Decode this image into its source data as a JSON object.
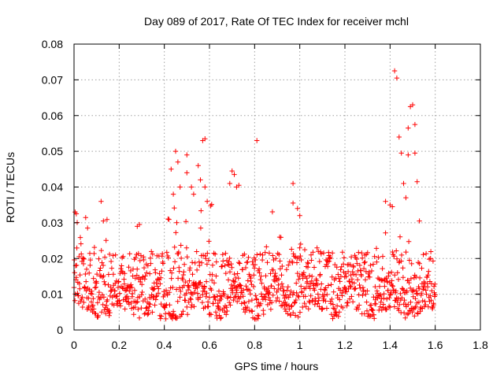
{
  "chart_data": {
    "type": "scatter",
    "title": "Day 089 of 2017, Rate Of TEC Index for receiver mchl",
    "xlabel": "GPS time / hours",
    "ylabel": "ROTI / TECUs",
    "xlim": [
      0,
      1.8
    ],
    "ylim": [
      0,
      0.08
    ],
    "xticks": [
      "0",
      "0.2",
      "0.4",
      "0.6",
      "0.8",
      "1",
      "1.2",
      "1.4",
      "1.6",
      "1.8"
    ],
    "yticks": [
      "0",
      "0.01",
      "0.02",
      "0.03",
      "0.04",
      "0.05",
      "0.06",
      "0.07",
      "0.08"
    ],
    "grid": true,
    "legend": "none",
    "marker": "plus",
    "color": "#ff0000",
    "outliers": [
      [
        0.005,
        0.033
      ],
      [
        0.01,
        0.0325
      ],
      [
        0.12,
        0.036
      ],
      [
        0.13,
        0.0305
      ],
      [
        0.28,
        0.029
      ],
      [
        0.29,
        0.0295
      ],
      [
        0.43,
        0.045
      ],
      [
        0.44,
        0.038
      ],
      [
        0.45,
        0.05
      ],
      [
        0.46,
        0.047
      ],
      [
        0.47,
        0.04
      ],
      [
        0.5,
        0.049
      ],
      [
        0.5,
        0.044
      ],
      [
        0.52,
        0.04
      ],
      [
        0.53,
        0.038
      ],
      [
        0.55,
        0.046
      ],
      [
        0.56,
        0.042
      ],
      [
        0.57,
        0.053
      ],
      [
        0.58,
        0.0535
      ],
      [
        0.58,
        0.04
      ],
      [
        0.59,
        0.036
      ],
      [
        0.69,
        0.041
      ],
      [
        0.7,
        0.0445
      ],
      [
        0.71,
        0.0435
      ],
      [
        0.72,
        0.04
      ],
      [
        0.73,
        0.0405
      ],
      [
        0.81,
        0.053
      ],
      [
        0.97,
        0.041
      ],
      [
        0.97,
        0.0355
      ],
      [
        0.99,
        0.034
      ],
      [
        1.0,
        0.032
      ],
      [
        1.38,
        0.036
      ],
      [
        1.4,
        0.035
      ],
      [
        1.41,
        0.0345
      ],
      [
        1.42,
        0.0725
      ],
      [
        1.43,
        0.0705
      ],
      [
        1.44,
        0.054
      ],
      [
        1.45,
        0.0495
      ],
      [
        1.46,
        0.041
      ],
      [
        1.47,
        0.037
      ],
      [
        1.48,
        0.0565
      ],
      [
        1.49,
        0.0625
      ],
      [
        1.5,
        0.063
      ],
      [
        1.51,
        0.0575
      ],
      [
        1.51,
        0.0495
      ],
      [
        1.52,
        0.0415
      ],
      [
        1.53,
        0.0305
      ],
      [
        1.48,
        0.049
      ]
    ]
  }
}
